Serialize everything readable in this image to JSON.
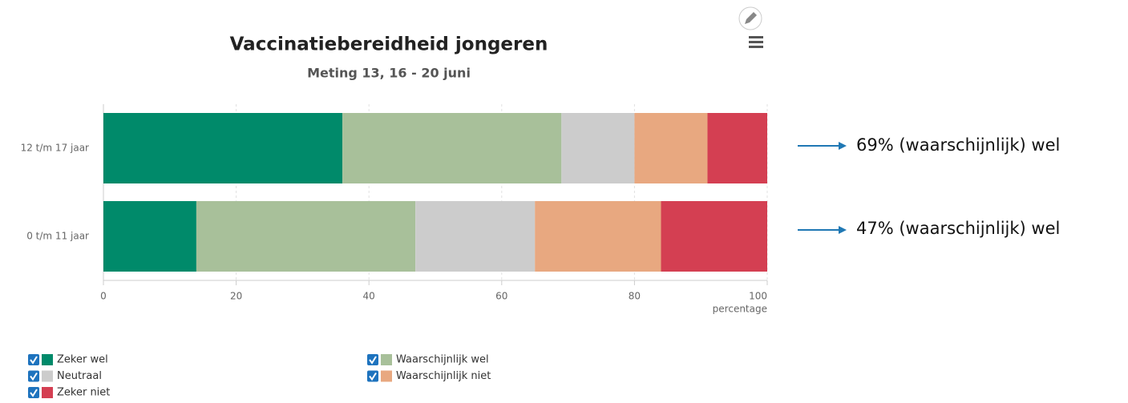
{
  "chart_data": {
    "type": "stacked-bar-horizontal",
    "title": "Vaccinatiebereidheid jongeren",
    "subtitle": "Meting 13, 16 - 20 juni",
    "x_label": "percentage",
    "categories": [
      "12 t/m 17 jaar",
      "0 t/m 11 jaar"
    ],
    "series": [
      {
        "name": "Zeker wel",
        "color": "#008a6a",
        "values": [
          36,
          14
        ]
      },
      {
        "name": "Waarschijnlijk wel",
        "color": "#a8c09a",
        "values": [
          33,
          33
        ]
      },
      {
        "name": "Neutraal",
        "color": "#cccccc",
        "values": [
          11,
          18
        ]
      },
      {
        "name": "Waarschijnlijk niet",
        "color": "#e8a880",
        "values": [
          11,
          19
        ]
      },
      {
        "name": "Zeker niet",
        "color": "#d43f52",
        "values": [
          9,
          16
        ]
      }
    ],
    "xlim": [
      0,
      100
    ],
    "xticks": [
      0,
      20,
      40,
      60,
      80,
      100
    ],
    "grid": true,
    "annotations": [
      "69% (waarschijnlijk) wel",
      "47% (waarschijnlijk) wel"
    ]
  }
}
